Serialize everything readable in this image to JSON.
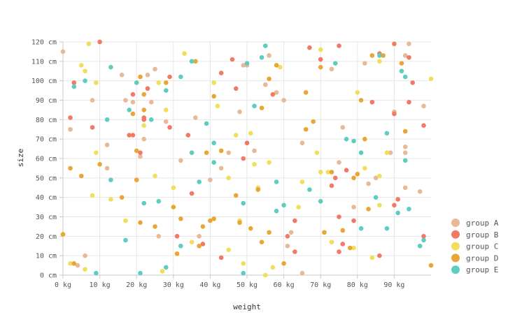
{
  "chart_data": {
    "type": "scatter",
    "title": "",
    "xlabel": "weight",
    "ylabel": "size",
    "xlim": [
      0,
      100
    ],
    "ylim": [
      0,
      120
    ],
    "x_unit": "kg",
    "y_unit": "cm",
    "x_ticks": [
      "0 kg",
      "10 kg",
      "20 kg",
      "30 kg",
      "40 kg",
      "50 kg",
      "60 kg",
      "70 kg",
      "80 kg",
      "90 kg"
    ],
    "y_ticks": [
      "0 cm",
      "10 cm",
      "20 cm",
      "30 cm",
      "40 cm",
      "50 cm",
      "60 cm",
      "70 cm",
      "80 cm",
      "90 cm",
      "100 cm",
      "110 cm",
      "120 cm"
    ],
    "grid": true,
    "legend_position": "bottom-right",
    "series": [
      {
        "name": "group A",
        "color": "#e8b996",
        "points": [
          [
            0,
            115
          ],
          [
            2,
            75
          ],
          [
            4,
            5
          ],
          [
            6,
            10
          ],
          [
            8,
            90
          ],
          [
            12,
            67
          ],
          [
            12,
            55
          ],
          [
            16,
            103
          ],
          [
            17,
            90
          ],
          [
            19,
            89
          ],
          [
            21,
            61
          ],
          [
            22,
            70
          ],
          [
            23,
            103
          ],
          [
            24,
            89
          ],
          [
            25,
            106
          ],
          [
            26,
            20
          ],
          [
            28,
            79
          ],
          [
            32,
            59
          ],
          [
            36,
            81
          ],
          [
            37,
            20
          ],
          [
            40,
            49
          ],
          [
            43,
            55
          ],
          [
            45,
            63
          ],
          [
            48,
            84
          ],
          [
            49,
            108
          ],
          [
            50,
            108
          ],
          [
            52,
            64
          ],
          [
            55,
            98
          ],
          [
            56,
            113
          ],
          [
            58,
            94
          ],
          [
            60,
            90
          ],
          [
            61,
            15
          ],
          [
            62,
            22
          ],
          [
            65,
            68
          ],
          [
            65,
            1
          ],
          [
            73,
            106
          ],
          [
            73,
            17
          ],
          [
            75,
            58
          ],
          [
            76,
            76
          ],
          [
            79,
            35
          ],
          [
            82,
            109
          ],
          [
            83,
            47
          ],
          [
            85,
            50
          ],
          [
            89,
            63
          ],
          [
            90,
            84
          ],
          [
            93,
            63
          ],
          [
            93,
            66
          ],
          [
            93,
            45
          ],
          [
            93,
            113
          ],
          [
            94,
            119
          ],
          [
            97,
            43
          ],
          [
            98,
            87
          ]
        ]
      },
      {
        "name": "group B",
        "color": "#f07a65",
        "points": [
          [
            2,
            81
          ],
          [
            3,
            99
          ],
          [
            8,
            76
          ],
          [
            10,
            120
          ],
          [
            18,
            72
          ],
          [
            19,
            93
          ],
          [
            19,
            72
          ],
          [
            21,
            63
          ],
          [
            22,
            81
          ],
          [
            22,
            80
          ],
          [
            23,
            96
          ],
          [
            29,
            102
          ],
          [
            29,
            76
          ],
          [
            31,
            20
          ],
          [
            34,
            72
          ],
          [
            35,
            42
          ],
          [
            38,
            16
          ],
          [
            43,
            104
          ],
          [
            43,
            9
          ],
          [
            46,
            111
          ],
          [
            47,
            96
          ],
          [
            49,
            60
          ],
          [
            50,
            68
          ],
          [
            57,
            93
          ],
          [
            61,
            20
          ],
          [
            63,
            12
          ],
          [
            63,
            28
          ],
          [
            67,
            117
          ],
          [
            70,
            111
          ],
          [
            73,
            46
          ],
          [
            74,
            50
          ],
          [
            75,
            118
          ],
          [
            75,
            30
          ],
          [
            75,
            12
          ],
          [
            76,
            16
          ],
          [
            77,
            54
          ],
          [
            79,
            28
          ],
          [
            84,
            89
          ],
          [
            86,
            10
          ],
          [
            86,
            114
          ],
          [
            90,
            36
          ],
          [
            90,
            83
          ],
          [
            90,
            119
          ],
          [
            91,
            39
          ],
          [
            94,
            112
          ],
          [
            94,
            89
          ],
          [
            95,
            99
          ],
          [
            98,
            20
          ],
          [
            98,
            77
          ]
        ]
      },
      {
        "name": "group C",
        "color": "#f2de5a",
        "points": [
          [
            2,
            6
          ],
          [
            5,
            108
          ],
          [
            6,
            105
          ],
          [
            6,
            3
          ],
          [
            7,
            119
          ],
          [
            8,
            41
          ],
          [
            9,
            63
          ],
          [
            9,
            99
          ],
          [
            13,
            39
          ],
          [
            17,
            28
          ],
          [
            22,
            77
          ],
          [
            25,
            51
          ],
          [
            26,
            99
          ],
          [
            27,
            2
          ],
          [
            28,
            85
          ],
          [
            30,
            45
          ],
          [
            33,
            114
          ],
          [
            35,
            17
          ],
          [
            41,
            99
          ],
          [
            42,
            87
          ],
          [
            45,
            13
          ],
          [
            45,
            50
          ],
          [
            47,
            72
          ],
          [
            48,
            28
          ],
          [
            49,
            6
          ],
          [
            51,
            73
          ],
          [
            52,
            57
          ],
          [
            53,
            45
          ],
          [
            55,
            0
          ],
          [
            56,
            58
          ],
          [
            57,
            4
          ],
          [
            59,
            107
          ],
          [
            64,
            35
          ],
          [
            65,
            48
          ],
          [
            69,
            63
          ],
          [
            70,
            53
          ],
          [
            70,
            116
          ],
          [
            72,
            53
          ],
          [
            73,
            17
          ],
          [
            79,
            14
          ],
          [
            80,
            94
          ],
          [
            82,
            55
          ],
          [
            84,
            9
          ],
          [
            86,
            36
          ],
          [
            86,
            51
          ],
          [
            86,
            110
          ],
          [
            88,
            63
          ],
          [
            100,
            101
          ]
        ]
      },
      {
        "name": "group D",
        "color": "#e8a636",
        "points": [
          [
            0,
            21
          ],
          [
            2,
            55
          ],
          [
            3,
            6
          ],
          [
            5,
            51
          ],
          [
            10,
            57
          ],
          [
            16,
            40
          ],
          [
            19,
            83
          ],
          [
            20,
            49
          ],
          [
            20,
            64
          ],
          [
            21,
            102
          ],
          [
            21,
            27
          ],
          [
            22,
            93
          ],
          [
            22,
            85
          ],
          [
            25,
            25
          ],
          [
            28,
            99
          ],
          [
            30,
            35
          ],
          [
            31,
            11
          ],
          [
            32,
            29
          ],
          [
            36,
            110
          ],
          [
            37,
            15
          ],
          [
            38,
            25
          ],
          [
            39,
            63
          ],
          [
            40,
            28
          ],
          [
            41,
            29
          ],
          [
            41,
            92
          ],
          [
            43,
            64
          ],
          [
            47,
            41
          ],
          [
            48,
            27
          ],
          [
            51,
            24
          ],
          [
            53,
            44
          ],
          [
            54,
            86
          ],
          [
            54,
            17
          ],
          [
            56,
            22
          ],
          [
            56,
            101
          ],
          [
            58,
            108
          ],
          [
            60,
            6
          ],
          [
            66,
            75
          ],
          [
            66,
            94
          ],
          [
            68,
            79
          ],
          [
            70,
            107
          ],
          [
            71,
            22
          ],
          [
            73,
            53
          ],
          [
            76,
            23
          ],
          [
            78,
            14
          ],
          [
            79,
            50
          ],
          [
            80,
            52
          ],
          [
            81,
            90
          ],
          [
            82,
            70
          ],
          [
            83,
            34
          ],
          [
            84,
            113
          ],
          [
            87,
            113
          ],
          [
            92,
            109
          ],
          [
            93,
            74
          ],
          [
            100,
            5
          ]
        ]
      },
      {
        "name": "group E",
        "color": "#5ecdbf",
        "points": [
          [
            3,
            97
          ],
          [
            6,
            100
          ],
          [
            9,
            1
          ],
          [
            12,
            80
          ],
          [
            13,
            49
          ],
          [
            13,
            107
          ],
          [
            17,
            18
          ],
          [
            18,
            85
          ],
          [
            20,
            99
          ],
          [
            21,
            1
          ],
          [
            22,
            37
          ],
          [
            24,
            80
          ],
          [
            26,
            38
          ],
          [
            28,
            4
          ],
          [
            28,
            95
          ],
          [
            32,
            15
          ],
          [
            32,
            102
          ],
          [
            35,
            110
          ],
          [
            35,
            63
          ],
          [
            37,
            48
          ],
          [
            39,
            78
          ],
          [
            41,
            68
          ],
          [
            41,
            58
          ],
          [
            49,
            1
          ],
          [
            49,
            37
          ],
          [
            50,
            109
          ],
          [
            52,
            87
          ],
          [
            54,
            112
          ],
          [
            55,
            118
          ],
          [
            58,
            48
          ],
          [
            58,
            33
          ],
          [
            60,
            36
          ],
          [
            67,
            44
          ],
          [
            70,
            38
          ],
          [
            74,
            109
          ],
          [
            77,
            70
          ],
          [
            79,
            69
          ],
          [
            81,
            63
          ],
          [
            81,
            24
          ],
          [
            85,
            40
          ],
          [
            86,
            113
          ],
          [
            88,
            73
          ],
          [
            88,
            24
          ],
          [
            91,
            32
          ],
          [
            92,
            105
          ],
          [
            93,
            102
          ],
          [
            93,
            59
          ],
          [
            94,
            34
          ],
          [
            97,
            15
          ],
          [
            98,
            18
          ]
        ]
      }
    ]
  }
}
